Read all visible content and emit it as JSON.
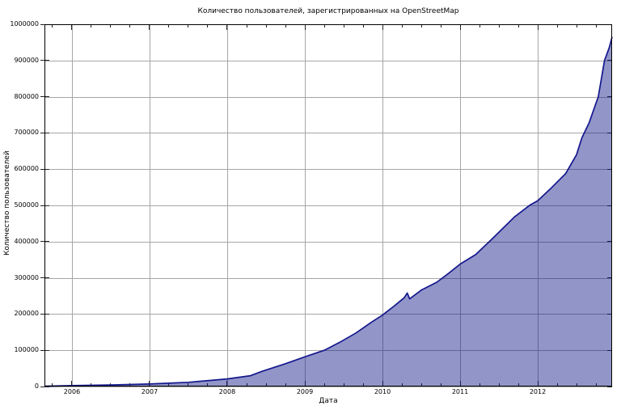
{
  "chart_data": {
    "type": "area",
    "title": "Количество пользователей, зарегистрированных на OpenStreetMap",
    "xlabel": "Дата",
    "ylabel": "Количество пользователей",
    "xlim": [
      2005.646,
      2012.958
    ],
    "ylim": [
      0,
      1000000
    ],
    "grid": true,
    "legend": "none",
    "x_ticks": [
      {
        "value": 2006,
        "label": "2006"
      },
      {
        "value": 2007,
        "label": "2007"
      },
      {
        "value": 2008,
        "label": "2008"
      },
      {
        "value": 2009,
        "label": "2009"
      },
      {
        "value": 2010,
        "label": "2010"
      },
      {
        "value": 2011,
        "label": "2011"
      },
      {
        "value": 2012,
        "label": "2012"
      }
    ],
    "x_minor_tick_interval": 0.25,
    "y_ticks": [
      {
        "value": 0,
        "label": "0"
      },
      {
        "value": 100000,
        "label": "100000"
      },
      {
        "value": 200000,
        "label": "200000"
      },
      {
        "value": 300000,
        "label": "300000"
      },
      {
        "value": 400000,
        "label": "400000"
      },
      {
        "value": 500000,
        "label": "500000"
      },
      {
        "value": 600000,
        "label": "600000"
      },
      {
        "value": 700000,
        "label": "700000"
      },
      {
        "value": 800000,
        "label": "800000"
      },
      {
        "value": 900000,
        "label": "900000"
      },
      {
        "value": 1000000,
        "label": "1000000"
      }
    ],
    "series": [
      {
        "name": "registered-users",
        "points": [
          [
            2005.65,
            1000
          ],
          [
            2006.0,
            2500
          ],
          [
            2006.5,
            4200
          ],
          [
            2007.0,
            7000
          ],
          [
            2007.5,
            11500
          ],
          [
            2008.0,
            21000
          ],
          [
            2008.3,
            30000
          ],
          [
            2008.45,
            42000
          ],
          [
            2008.75,
            63000
          ],
          [
            2009.0,
            82000
          ],
          [
            2009.25,
            100000
          ],
          [
            2009.45,
            122000
          ],
          [
            2009.66,
            148000
          ],
          [
            2009.86,
            178000
          ],
          [
            2010.0,
            197000
          ],
          [
            2010.15,
            222000
          ],
          [
            2010.28,
            245000
          ],
          [
            2010.32,
            258000
          ],
          [
            2010.35,
            242000
          ],
          [
            2010.5,
            266000
          ],
          [
            2010.7,
            288000
          ],
          [
            2010.85,
            312000
          ],
          [
            2011.0,
            338000
          ],
          [
            2011.2,
            364000
          ],
          [
            2011.4,
            405000
          ],
          [
            2011.7,
            468000
          ],
          [
            2011.9,
            501000
          ],
          [
            2012.0,
            513000
          ],
          [
            2012.16,
            545000
          ],
          [
            2012.36,
            588000
          ],
          [
            2012.5,
            640000
          ],
          [
            2012.57,
            687000
          ],
          [
            2012.66,
            727000
          ],
          [
            2012.78,
            800000
          ],
          [
            2012.86,
            900000
          ],
          [
            2012.92,
            935000
          ],
          [
            2012.958,
            965000
          ]
        ]
      }
    ],
    "colors": {
      "background": "#ffffff",
      "area_fill": "rgba(13,21,134,0.45)",
      "line": "#14188c",
      "grid": "#a6a6a6",
      "border": "#000000",
      "tick": "#222222",
      "text": "#000000"
    }
  }
}
